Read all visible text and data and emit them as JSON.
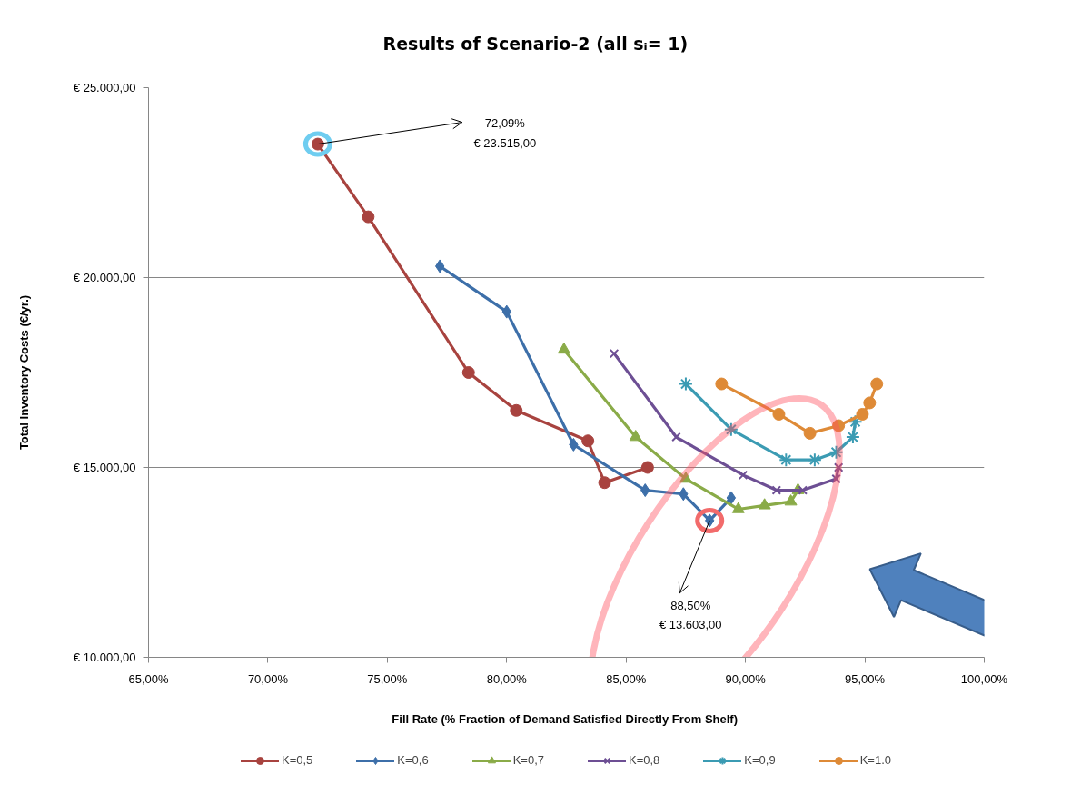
{
  "chart_data": {
    "type": "line",
    "title": "Results of Scenario-2 (all sᵢ= 1)",
    "xlabel": "Fill Rate (% Fraction of Demand Satisfied  Directly From Shelf)",
    "ylabel": "Total Inventory Costs (€/yr.)",
    "xlim": [
      65,
      100
    ],
    "xticks": [
      {
        "value": 65,
        "label": "65,00%"
      },
      {
        "value": 70,
        "label": "70,00%"
      },
      {
        "value": 75,
        "label": "75,00%"
      },
      {
        "value": 80,
        "label": "80,00%"
      },
      {
        "value": 85,
        "label": "85,00%"
      },
      {
        "value": 90,
        "label": "90,00%"
      },
      {
        "value": 95,
        "label": "95,00%"
      },
      {
        "value": 100,
        "label": "100,00%"
      }
    ],
    "ylim": [
      10000,
      25000
    ],
    "yticks": [
      {
        "value": 10000,
        "label": "€ 10.000,00"
      },
      {
        "value": 15000,
        "label": "€ 15.000,00"
      },
      {
        "value": 20000,
        "label": "€ 20.000,00"
      },
      {
        "value": 25000,
        "label": "€ 25.000,00"
      }
    ],
    "grid": "y",
    "legend": "bottom",
    "line_style": "solid",
    "series": [
      {
        "name": "K=0,5",
        "color": "#a8433f",
        "marker": "circle",
        "x": [
          72.09,
          74.2,
          78.4,
          80.4,
          83.4,
          84.1,
          85.9
        ],
        "values": [
          23515,
          21600,
          17500,
          16500,
          15700,
          14600,
          15000
        ]
      },
      {
        "name": "K=0,6",
        "color": "#3d6fa9",
        "marker": "diamond",
        "x": [
          77.2,
          80.0,
          82.8,
          85.8,
          87.4,
          88.5,
          89.4
        ],
        "values": [
          20300,
          19100,
          15600,
          14400,
          14300,
          13603,
          14200
        ]
      },
      {
        "name": "K=0,7",
        "color": "#8aab48",
        "marker": "triangle",
        "x": [
          82.4,
          85.4,
          87.5,
          89.7,
          90.8,
          91.9,
          92.2
        ],
        "values": [
          18100,
          15800,
          14700,
          13900,
          14000,
          14100,
          14400
        ]
      },
      {
        "name": "K=0,8",
        "color": "#6d4f94",
        "marker": "cross",
        "x": [
          84.5,
          87.1,
          89.9,
          91.3,
          92.4,
          93.8,
          93.9
        ],
        "values": [
          18000,
          15800,
          14800,
          14400,
          14400,
          14700,
          15000
        ]
      },
      {
        "name": "K=0,9",
        "color": "#3b9bb3",
        "marker": "cross",
        "x": [
          87.5,
          89.4,
          91.7,
          92.9,
          93.8,
          94.5,
          94.6
        ],
        "values": [
          17200,
          16000,
          15200,
          15200,
          15400,
          15800,
          16200
        ]
      },
      {
        "name": "K=1.0",
        "color": "#de8a37",
        "marker": "circle",
        "x": [
          89.0,
          91.4,
          92.7,
          93.9,
          94.9,
          95.2,
          95.5
        ],
        "values": [
          17200,
          16400,
          15900,
          16100,
          16400,
          16700,
          17200
        ]
      }
    ],
    "annotations": [
      {
        "text": "72,09%\n€ 23.515,00",
        "x": 72.09,
        "y": 23515
      },
      {
        "text": "88,50%\n€ 13.603,00",
        "x": 88.5,
        "y": 13603
      }
    ]
  }
}
